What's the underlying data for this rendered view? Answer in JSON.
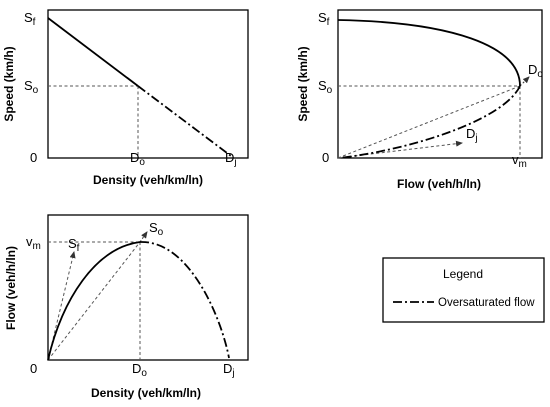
{
  "panels": {
    "speed_density": {
      "xlabel": "Density (veh/km/ln)",
      "ylabel": "Speed (km/h)",
      "origin_label": "0",
      "sf": {
        "main": "S",
        "sub": "f"
      },
      "so": {
        "main": "S",
        "sub": "o"
      },
      "do": {
        "main": "D",
        "sub": "o"
      },
      "dj": {
        "main": "D",
        "sub": "j"
      }
    },
    "speed_flow": {
      "xlabel": "Flow (veh/h/ln)",
      "ylabel": "Speed (km/h)",
      "origin_label": "0",
      "sf": {
        "main": "S",
        "sub": "f"
      },
      "so": {
        "main": "S",
        "sub": "o"
      },
      "do": {
        "main": "D",
        "sub": "o"
      },
      "dj": {
        "main": "D",
        "sub": "j"
      },
      "vm": {
        "main": "v",
        "sub": "m"
      }
    },
    "flow_density": {
      "xlabel": "Density (veh/km/ln)",
      "ylabel": "Flow (veh/h/ln)",
      "origin_label": "0",
      "vm": {
        "main": "v",
        "sub": "m"
      },
      "sf": {
        "main": "S",
        "sub": "f"
      },
      "so": {
        "main": "S",
        "sub": "o"
      },
      "do": {
        "main": "D",
        "sub": "o"
      },
      "dj": {
        "main": "D",
        "sub": "j"
      }
    }
  },
  "legend": {
    "title": "Legend",
    "entry": "Oversaturated flow"
  },
  "colors": {
    "curve": "#000000",
    "guide": "#555555",
    "frame": "#000000"
  }
}
